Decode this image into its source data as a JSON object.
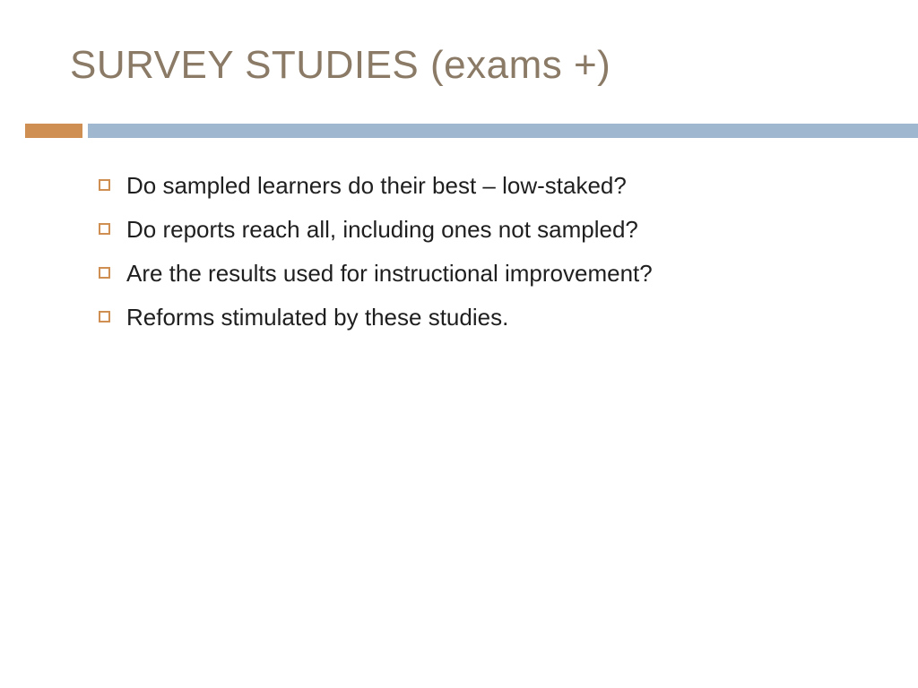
{
  "colors": {
    "title": "#8a7a66",
    "accent_orange": "#d08f52",
    "accent_blue": "#a0b8cf",
    "bullet_border": "#d08f52",
    "body_text": "#1f1f1f",
    "background": "#ffffff"
  },
  "layout": {
    "sep_left_width": 64,
    "sep_gap": 6,
    "sep_right_start": 98,
    "sep_right_width": 926
  },
  "title": "SURVEY STUDIES (exams +)",
  "bullets": [
    "Do sampled learners do their best – low-staked?",
    "Do reports reach all, including ones not sampled?",
    "Are the results used for instructional improvement?",
    "Reforms stimulated by these studies."
  ]
}
